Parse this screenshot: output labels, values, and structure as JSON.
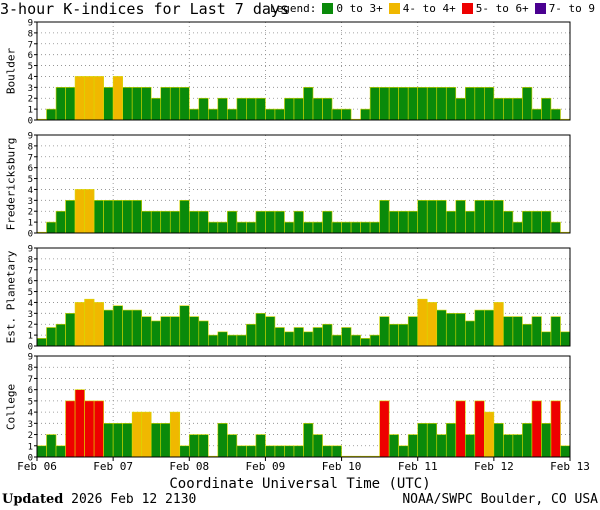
{
  "header": {
    "title": "3-hour K-indices for Last 7 days",
    "legend_label": "Legend:"
  },
  "legend": [
    {
      "label": "0 to 3+",
      "color": "#0a8a0a"
    },
    {
      "label": "4- to 4+",
      "color": "#f0b800"
    },
    {
      "label": "5- to 6+",
      "color": "#ee0000"
    },
    {
      "label": "7- to 9",
      "color": "#4a0090"
    }
  ],
  "footer": {
    "updated_label": "Updated",
    "updated_value": "2026 Feb 12 2130",
    "credit": "NOAA/SWPC Boulder, CO USA"
  },
  "chart_data": {
    "type": "bar",
    "xlabel": "Coordinate Universal Time (UTC)",
    "x_tick_labels": [
      "Feb 06",
      "Feb 07",
      "Feb 08",
      "Feb 09",
      "Feb 10",
      "Feb 11",
      "Feb 12",
      "Feb 13"
    ],
    "ylim": [
      0,
      9
    ],
    "y_ticks": [
      0,
      1,
      2,
      3,
      4,
      5,
      6,
      7,
      8,
      9
    ],
    "grid": true,
    "color_scale": [
      {
        "min": 0,
        "max": 3.9,
        "color": "#0a8a0a"
      },
      {
        "min": 4,
        "max": 4.9,
        "color": "#f0b800"
      },
      {
        "min": 5,
        "max": 6.9,
        "color": "#ee0000"
      },
      {
        "min": 7,
        "max": 9,
        "color": "#4a0090"
      }
    ],
    "series": [
      {
        "name": "Boulder",
        "values": [
          0,
          1,
          3,
          3,
          4,
          4,
          4,
          3,
          4,
          3,
          3,
          3,
          2,
          3,
          3,
          3,
          1,
          2,
          1,
          2,
          1,
          2,
          2,
          2,
          1,
          1,
          2,
          2,
          3,
          2,
          2,
          1,
          1,
          0,
          1,
          3,
          3,
          3,
          3,
          3,
          3,
          3,
          3,
          3,
          2,
          3,
          3,
          3,
          2,
          2,
          2,
          3,
          1,
          2,
          1,
          0
        ]
      },
      {
        "name": "Fredericksburg",
        "values": [
          0,
          1,
          2,
          3,
          4,
          4,
          3,
          3,
          3,
          3,
          3,
          2,
          2,
          2,
          2,
          3,
          2,
          2,
          1,
          1,
          2,
          1,
          1,
          2,
          2,
          2,
          1,
          2,
          1,
          1,
          2,
          1,
          1,
          1,
          1,
          1,
          3,
          2,
          2,
          2,
          3,
          3,
          3,
          2,
          3,
          2,
          3,
          3,
          3,
          2,
          1,
          2,
          2,
          2,
          1,
          0
        ]
      },
      {
        "name": "Est. Planetary",
        "values": [
          0.7,
          1.7,
          2.0,
          3.0,
          4.0,
          4.3,
          4.0,
          3.3,
          3.7,
          3.3,
          3.3,
          2.7,
          2.3,
          2.7,
          2.7,
          3.7,
          2.7,
          2.3,
          1.0,
          1.3,
          1.0,
          1.0,
          2.0,
          3.0,
          2.7,
          1.7,
          1.3,
          1.7,
          1.3,
          1.7,
          2.0,
          1.0,
          1.7,
          1.0,
          0.7,
          1.0,
          2.7,
          2.0,
          2.0,
          2.7,
          4.3,
          4.0,
          3.3,
          3.0,
          3.0,
          2.3,
          3.3,
          3.3,
          4.0,
          2.7,
          2.7,
          2.0,
          2.7,
          1.3,
          2.7,
          1.3
        ]
      },
      {
        "name": "College",
        "values": [
          1,
          2,
          1,
          5,
          6,
          5,
          5,
          3,
          3,
          3,
          4,
          4,
          3,
          3,
          4,
          1,
          2,
          2,
          0,
          3,
          2,
          1,
          1,
          2,
          1,
          1,
          1,
          1,
          3,
          2,
          1,
          1,
          0,
          0,
          0,
          0,
          5,
          2,
          1,
          2,
          3,
          3,
          2,
          3,
          5,
          2,
          5,
          4,
          3,
          2,
          2,
          3,
          5,
          3,
          5,
          1
        ]
      }
    ]
  }
}
